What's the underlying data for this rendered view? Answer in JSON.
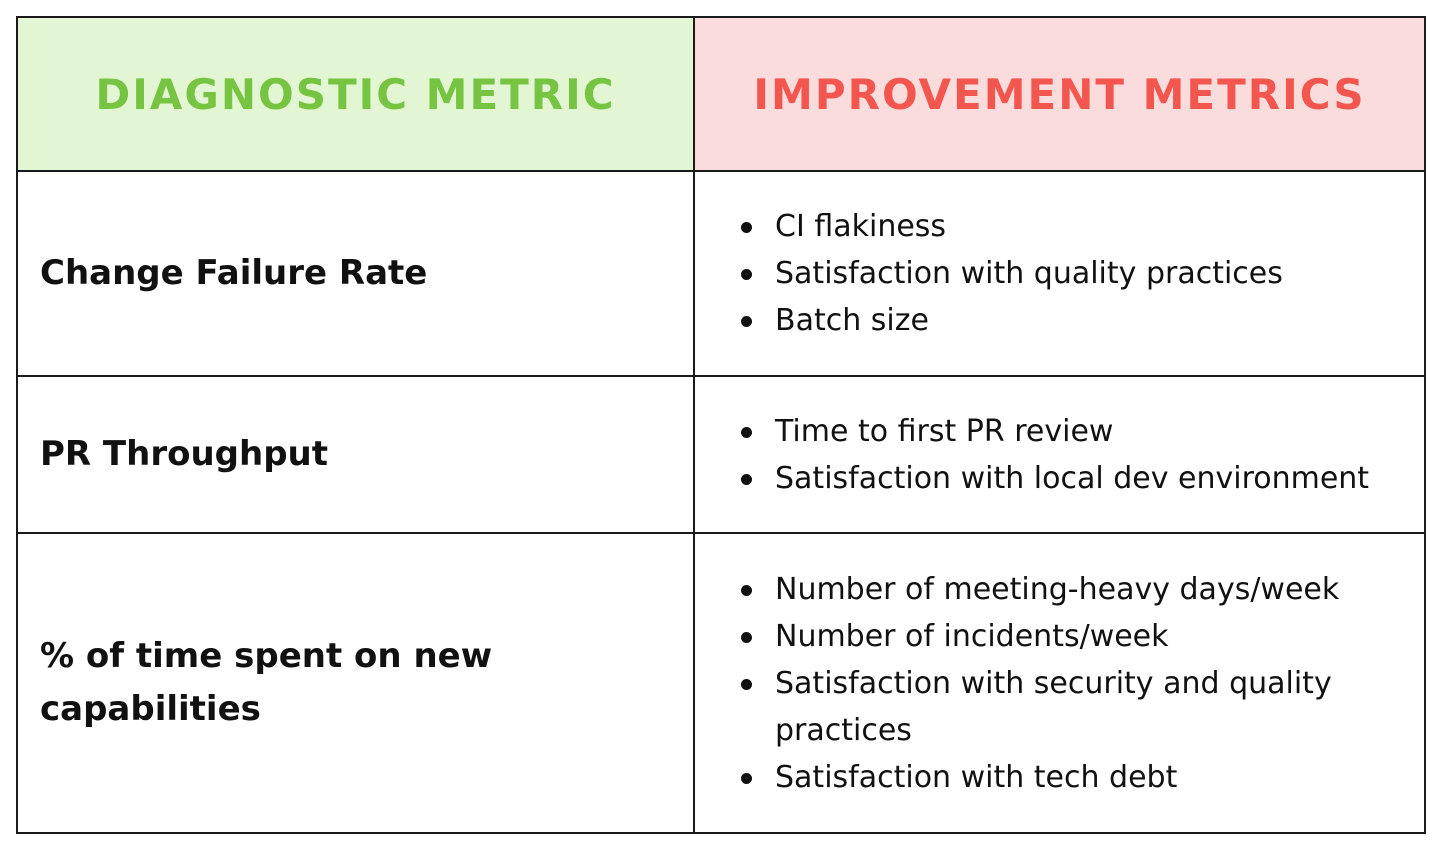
{
  "headers": {
    "diagnostic": "DIAGNOSTIC METRIC",
    "improvement": "IMPROVEMENT METRICS"
  },
  "rows": [
    {
      "diagnostic": "Change Failure Rate",
      "improvements": [
        "CI flakiness",
        "Satisfaction with quality practices",
        "Batch size"
      ]
    },
    {
      "diagnostic": "PR Throughput",
      "improvements": [
        "Time to first PR review",
        "Satisfaction with local dev environment"
      ]
    },
    {
      "diagnostic": "% of time spent on new capabilities",
      "improvements": [
        "Number of meeting-heavy days/week",
        "Number of incidents/week",
        "Satisfaction with security and quality practices",
        "Satisfaction with tech debt"
      ]
    }
  ],
  "colors": {
    "diagnostic_header_bg": "#e3f6d3",
    "diagnostic_header_text": "#76c442",
    "improvement_header_bg": "#fbdcdc",
    "improvement_header_text": "#f2564e",
    "border": "#1a1a1a"
  }
}
